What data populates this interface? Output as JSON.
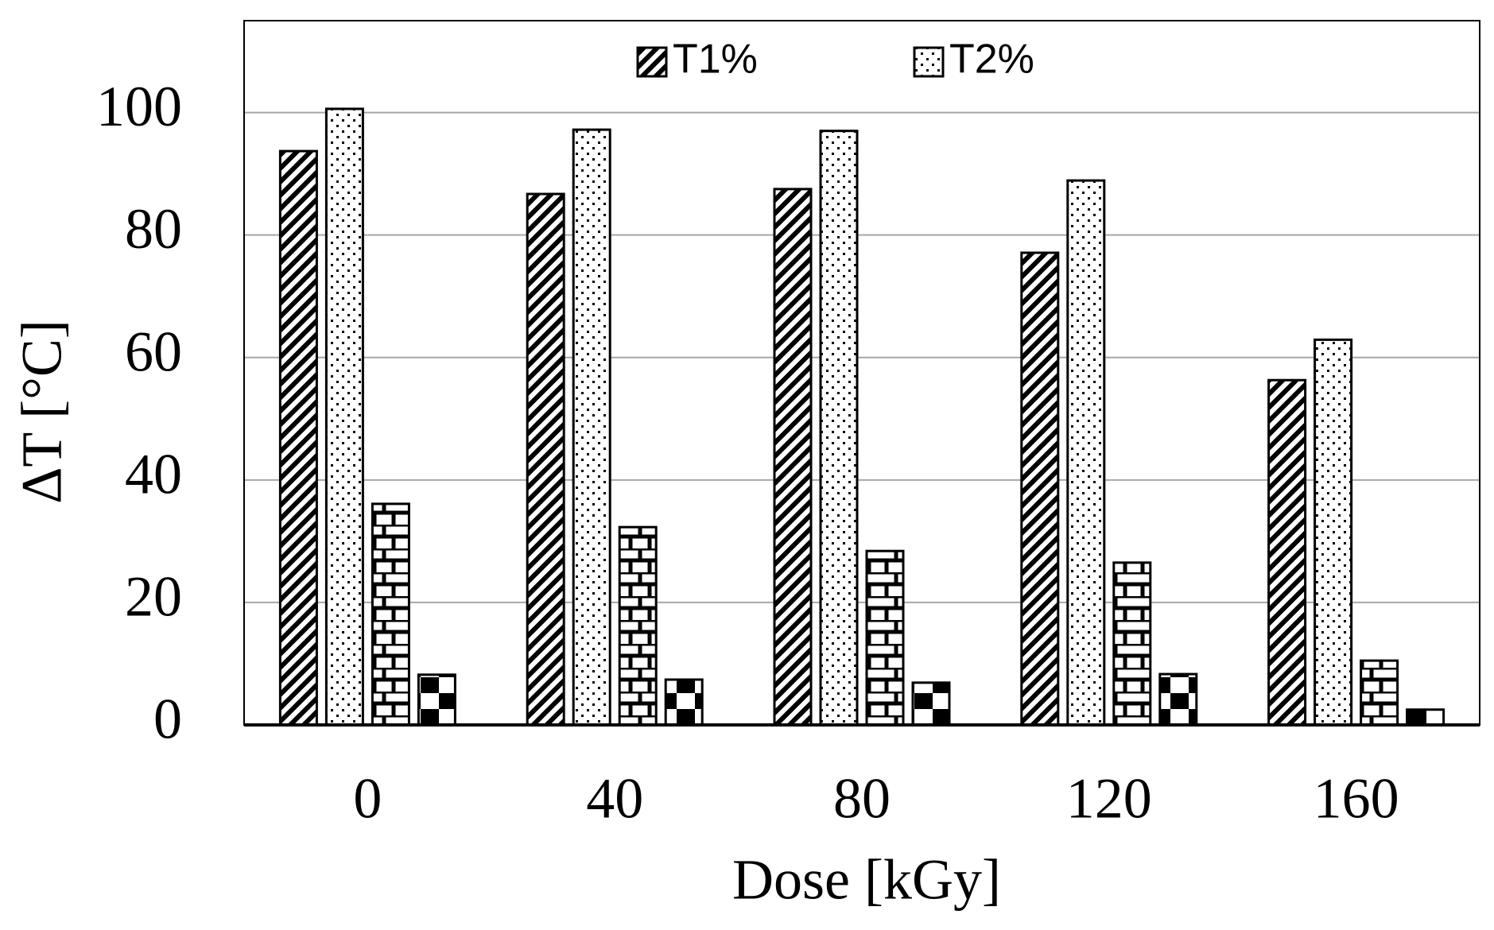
{
  "chart_data": {
    "type": "bar",
    "x_label": "Dose [kGy]",
    "y_label": "ΔT [°C]",
    "categories": [
      "0",
      "40",
      "80",
      "120",
      "160"
    ],
    "series": [
      {
        "name": "T1%",
        "color": "#000000",
        "values": [
          93.7,
          86.7,
          87.5,
          77.1,
          56.3
        ]
      },
      {
        "name": "T2%",
        "color": "#000000",
        "values": [
          100.6,
          97.2,
          97.0,
          88.9,
          62.9
        ]
      },
      {
        "color": "#000000",
        "values": [
          36.1,
          32.3,
          28.4,
          26.5,
          10.5
        ]
      },
      {
        "color": "#000000",
        "values": [
          8.2,
          7.4,
          6.9,
          8.3,
          2.5
        ]
      }
    ],
    "ylim": [
      0,
      115
    ],
    "yticks": [
      0,
      20,
      40,
      60,
      80,
      100
    ],
    "grid": true,
    "legend": "top"
  }
}
